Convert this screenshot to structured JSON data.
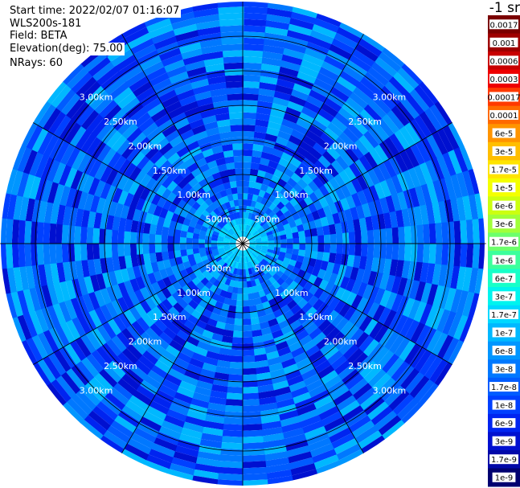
{
  "header": {
    "start_time": "Start time: 2022/02/07 01:16:07",
    "instrument": "WLS200s-181",
    "field": "Field: BETA",
    "elevation": "Elevation(deg): 75.00",
    "nrays": "NRays: 60"
  },
  "colorbar": {
    "unit_label": "-1 sr",
    "levels": [
      {
        "label": "0.0017",
        "color": "#7a0000"
      },
      {
        "label": "0.001",
        "color": "#9e0000"
      },
      {
        "label": "0.0006",
        "color": "#c80000"
      },
      {
        "label": "0.0003",
        "color": "#ee0000"
      },
      {
        "label": "0.00017",
        "color": "#ff3a00"
      },
      {
        "label": "0.0001",
        "color": "#ff6a00"
      },
      {
        "label": "6e-5",
        "color": "#ff9400"
      },
      {
        "label": "3e-5",
        "color": "#ffbe00"
      },
      {
        "label": "1.7e-5",
        "color": "#ffe400"
      },
      {
        "label": "1e-5",
        "color": "#f4ff00"
      },
      {
        "label": "6e-6",
        "color": "#ccff10"
      },
      {
        "label": "3e-6",
        "color": "#a0ff3a"
      },
      {
        "label": "1.7e-6",
        "color": "#6cff6c"
      },
      {
        "label": "1e-6",
        "color": "#3cff9c"
      },
      {
        "label": "6e-7",
        "color": "#18ffc8"
      },
      {
        "label": "3e-7",
        "color": "#00f4ee"
      },
      {
        "label": "1.7e-7",
        "color": "#00d8ff"
      },
      {
        "label": "1e-7",
        "color": "#00b8ff"
      },
      {
        "label": "6e-8",
        "color": "#0096ff"
      },
      {
        "label": "3e-8",
        "color": "#0078ff"
      },
      {
        "label": "1.7e-8",
        "color": "#005cff"
      },
      {
        "label": "1e-8",
        "color": "#0040ff"
      },
      {
        "label": "6e-9",
        "color": "#0024f0"
      },
      {
        "label": "3e-9",
        "color": "#0010d0"
      },
      {
        "label": "1.7e-9",
        "color": "#0008a8"
      },
      {
        "label": "1e-9",
        "color": "#000070"
      }
    ]
  },
  "chart_data": {
    "type": "heatmap",
    "projection": "polar (PPI)",
    "field": "BETA",
    "elevation_deg": 75.0,
    "n_rays": 60,
    "range_rings": [
      "500m",
      "1.00km",
      "1.50km",
      "2.00km",
      "2.50km",
      "3.00km"
    ],
    "ring_label_angles_deg": [
      45,
      135,
      225,
      315
    ],
    "spoke_angles_deg": [
      0,
      30,
      60,
      90,
      120,
      150,
      180,
      210,
      240,
      270,
      300,
      330
    ],
    "max_range_km": 3.5,
    "value_range": [
      "1e-9",
      "0.0017"
    ],
    "dominant_values": [
      "3e-9",
      "6e-9",
      "1e-8",
      "1.7e-8",
      "3e-8",
      "6e-8",
      "1e-7"
    ],
    "near_field_values": [
      "1e-7",
      "1.7e-7"
    ]
  }
}
